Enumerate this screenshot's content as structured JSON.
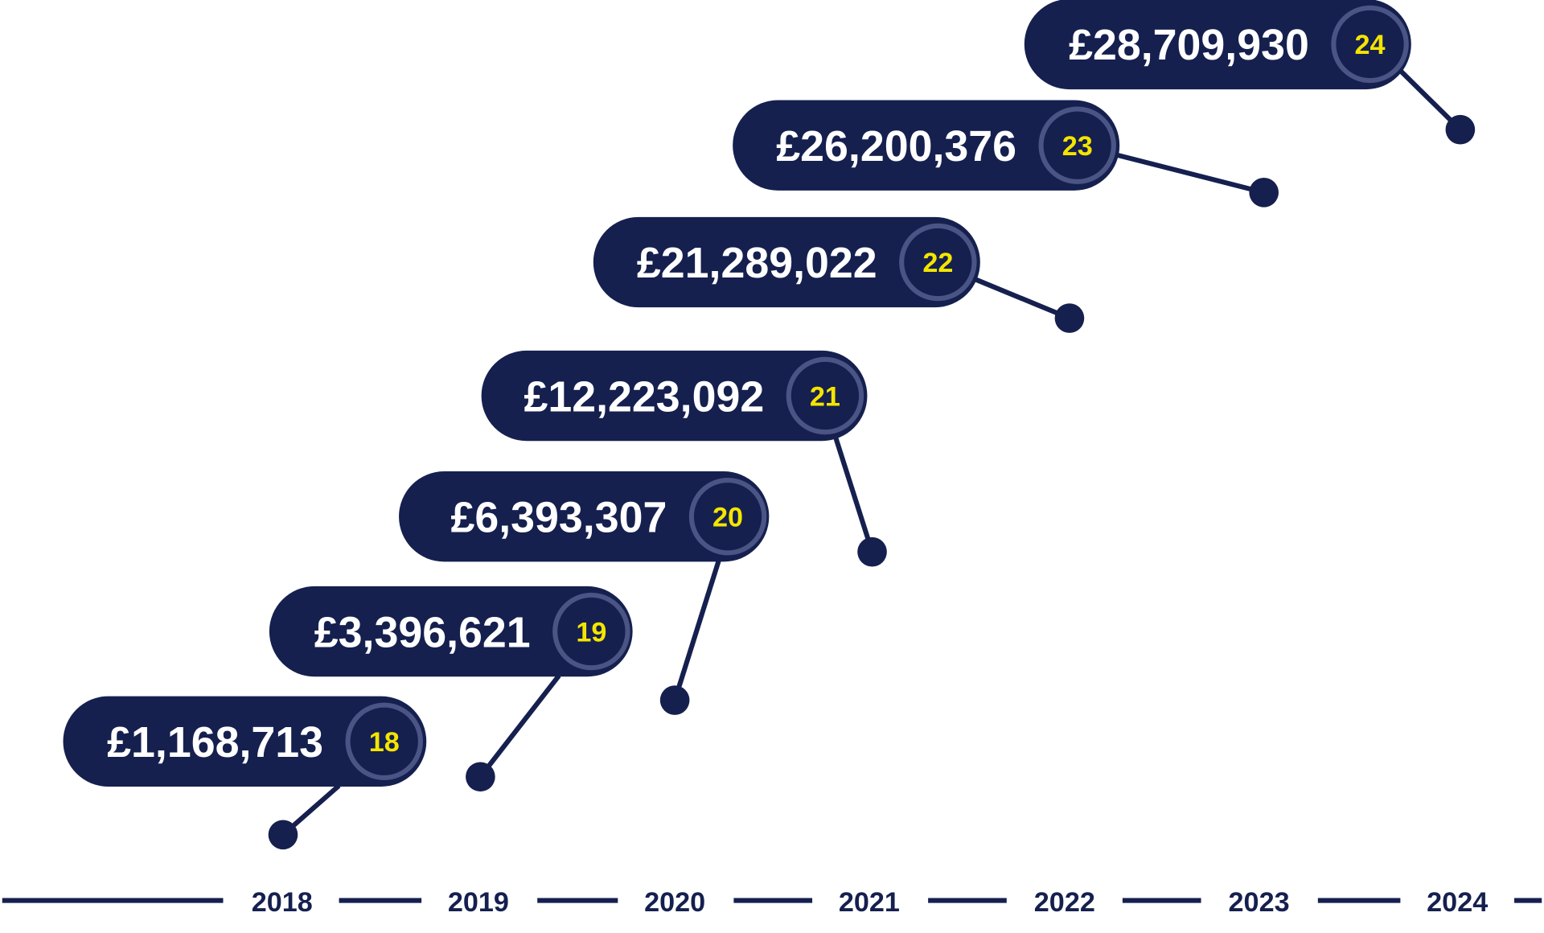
{
  "milestones": [
    {
      "amount": "£1,168,713",
      "badge": "18"
    },
    {
      "amount": "£3,396,621",
      "badge": "19"
    },
    {
      "amount": "£6,393,307",
      "badge": "20"
    },
    {
      "amount": "£12,223,092",
      "badge": "21"
    },
    {
      "amount": "£21,289,022",
      "badge": "22"
    },
    {
      "amount": "£26,200,376",
      "badge": "23"
    },
    {
      "amount": "£28,709,930",
      "badge": "24"
    }
  ],
  "years": [
    "2018",
    "2019",
    "2020",
    "2021",
    "2022",
    "2023",
    "2024"
  ]
}
